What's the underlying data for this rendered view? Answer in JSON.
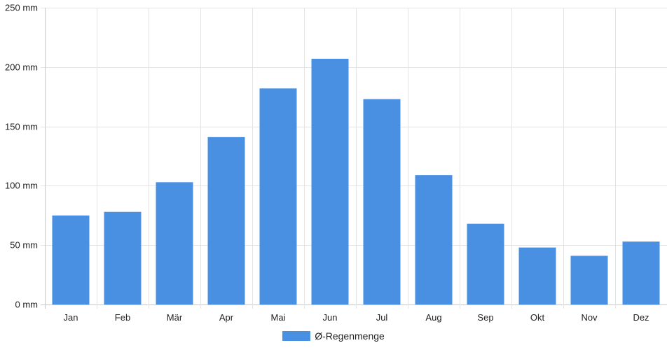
{
  "chart_data": {
    "type": "bar",
    "categories": [
      "Jan",
      "Feb",
      "Mär",
      "Apr",
      "Mai",
      "Jun",
      "Jul",
      "Aug",
      "Sep",
      "Okt",
      "Nov",
      "Dez"
    ],
    "series": [
      {
        "name": "Ø-Regenmenge",
        "values": [
          75,
          78,
          103,
          141,
          182,
          207,
          173,
          109,
          68,
          48,
          41,
          53
        ]
      }
    ],
    "y_ticks": [
      "0 mm",
      "50 mm",
      "100 mm",
      "150 mm",
      "200 mm",
      "250 mm"
    ],
    "ylim": [
      0,
      250
    ],
    "grid": true,
    "legend_position": "bottom",
    "colors": {
      "bar": "#4a90e2",
      "grid": "#e4e4e4",
      "axis": "#c8c8c8"
    }
  }
}
